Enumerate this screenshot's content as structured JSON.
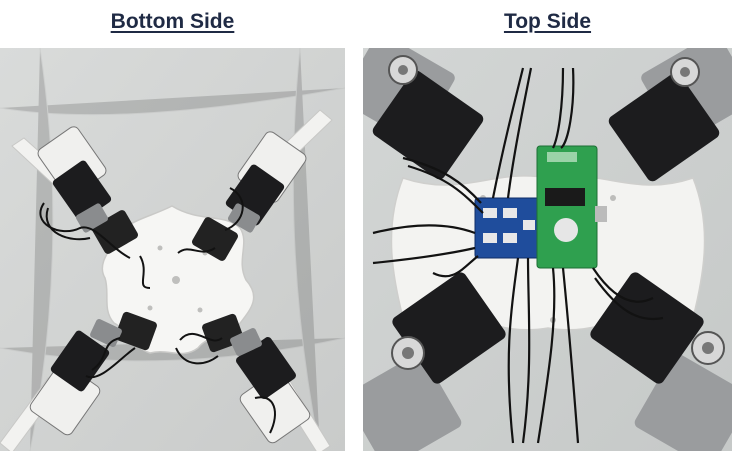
{
  "captions": {
    "left": "Bottom Side",
    "right": "Top Side"
  },
  "colors": {
    "background": "#d4d6d5",
    "frame": "#f4f4f2",
    "servo": "#1c1c1e",
    "board": "#2fa04f",
    "hub": "#1f4d9c",
    "wire": "#121212",
    "caption": "#1f2a44"
  }
}
